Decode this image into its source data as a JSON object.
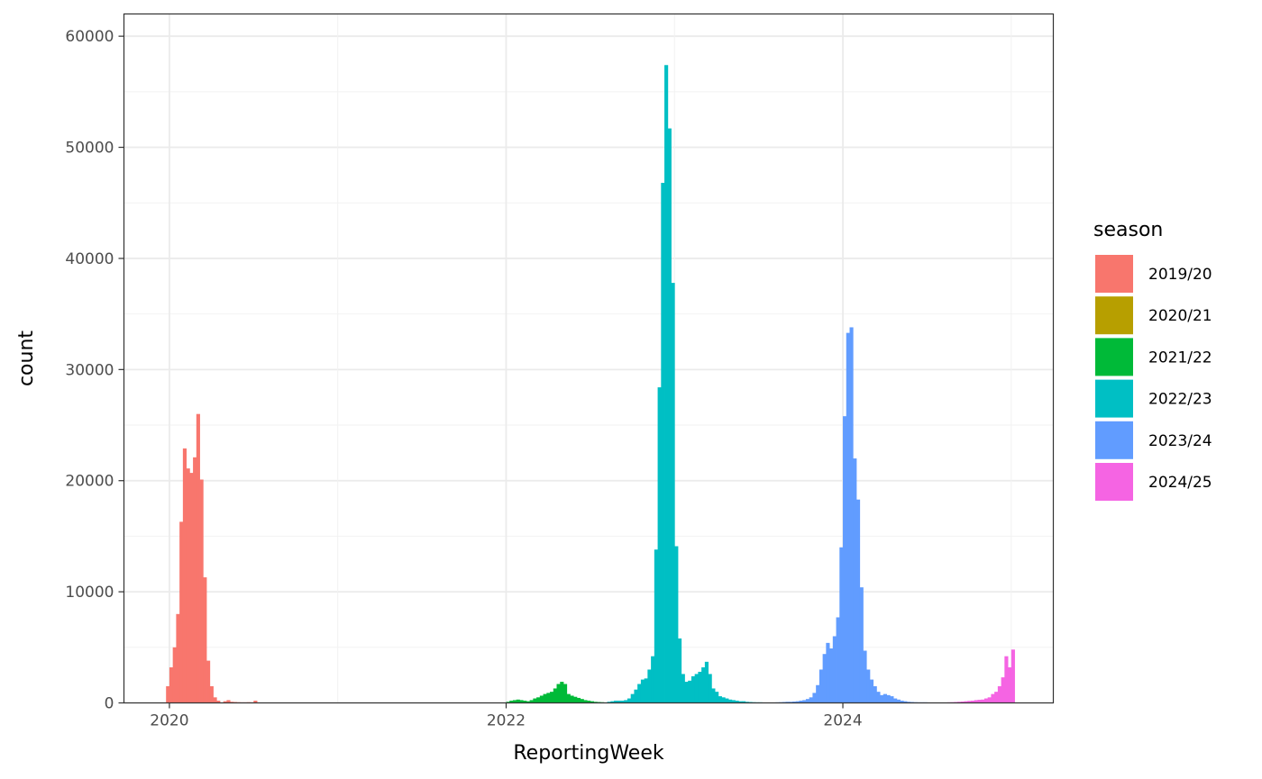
{
  "chart_data": {
    "type": "bar",
    "xlabel": "ReportingWeek",
    "ylabel": "count",
    "x_ticks": [
      "2020",
      "2022",
      "2024"
    ],
    "y_ticks": [
      "0",
      "10000",
      "20000",
      "30000",
      "40000",
      "50000",
      "60000"
    ],
    "xlim": [
      2019.73,
      2025.25
    ],
    "ylim": [
      0,
      62000
    ],
    "grid": true,
    "legend": {
      "title": "season",
      "placement": "right"
    },
    "series": [
      {
        "name": "2019/20",
        "color": "#F8766D",
        "x": [
          2019.99,
          2020.01,
          2020.03,
          2020.05,
          2020.07,
          2020.09,
          2020.11,
          2020.13,
          2020.15,
          2020.17,
          2020.19,
          2020.21,
          2020.23,
          2020.25,
          2020.27,
          2020.29,
          2020.33,
          2020.35,
          2020.37,
          2020.39,
          2020.41,
          2020.43,
          2020.45,
          2020.47,
          2020.49,
          2020.51,
          2020.53
        ],
        "values": [
          1500,
          3200,
          5000,
          8000,
          16300,
          22900,
          21100,
          20700,
          22100,
          26000,
          20100,
          11300,
          3800,
          1500,
          500,
          200,
          150,
          250,
          100,
          80,
          60,
          50,
          50,
          60,
          50,
          200,
          30
        ]
      },
      {
        "name": "2020/21",
        "color": "#B79F00",
        "x": [],
        "values": []
      },
      {
        "name": "2021/22",
        "color": "#00BA38",
        "x": [
          2022.01,
          2022.03,
          2022.05,
          2022.07,
          2022.09,
          2022.11,
          2022.13,
          2022.15,
          2022.17,
          2022.19,
          2022.21,
          2022.23,
          2022.25,
          2022.27,
          2022.29,
          2022.31,
          2022.33,
          2022.35,
          2022.37,
          2022.39,
          2022.41,
          2022.43,
          2022.45,
          2022.47,
          2022.49,
          2022.51,
          2022.53,
          2022.55,
          2022.57
        ],
        "values": [
          100,
          200,
          250,
          300,
          250,
          200,
          150,
          250,
          400,
          500,
          650,
          800,
          900,
          1000,
          1300,
          1700,
          1900,
          1700,
          800,
          650,
          550,
          450,
          350,
          250,
          200,
          150,
          100,
          80,
          60
        ]
      },
      {
        "name": "2022/23",
        "color": "#00BFC4",
        "x": [
          2022.61,
          2022.63,
          2022.65,
          2022.67,
          2022.69,
          2022.71,
          2022.73,
          2022.75,
          2022.77,
          2022.79,
          2022.81,
          2022.83,
          2022.85,
          2022.87,
          2022.89,
          2022.91,
          2022.93,
          2022.95,
          2022.97,
          2022.99,
          2023.01,
          2023.03,
          2023.05,
          2023.07,
          2023.09,
          2023.11,
          2023.13,
          2023.15,
          2023.17,
          2023.19,
          2023.21,
          2023.23,
          2023.25,
          2023.27,
          2023.29,
          2023.31,
          2023.33,
          2023.35,
          2023.37,
          2023.39,
          2023.41,
          2023.43,
          2023.45,
          2023.47,
          2023.49,
          2023.51,
          2023.53,
          2023.55,
          2023.57,
          2023.59
        ],
        "values": [
          100,
          150,
          200,
          200,
          200,
          250,
          400,
          800,
          1200,
          1700,
          2100,
          2200,
          3000,
          4200,
          13800,
          28400,
          46800,
          57400,
          51700,
          37800,
          14100,
          5800,
          2600,
          1900,
          2000,
          2400,
          2600,
          2800,
          3200,
          3700,
          2600,
          1300,
          1000,
          600,
          500,
          400,
          300,
          250,
          200,
          150,
          150,
          100,
          80,
          60,
          50,
          50,
          40,
          40,
          30,
          30
        ]
      },
      {
        "name": "2023/24",
        "color": "#619CFF",
        "x": [
          2023.61,
          2023.63,
          2023.65,
          2023.67,
          2023.69,
          2023.71,
          2023.73,
          2023.75,
          2023.77,
          2023.79,
          2023.81,
          2023.83,
          2023.85,
          2023.87,
          2023.89,
          2023.91,
          2023.93,
          2023.95,
          2023.97,
          2023.99,
          2024.01,
          2024.03,
          2024.05,
          2024.07,
          2024.09,
          2024.11,
          2024.13,
          2024.15,
          2024.17,
          2024.19,
          2024.21,
          2024.23,
          2024.25,
          2024.27,
          2024.29,
          2024.31,
          2024.33,
          2024.35,
          2024.37,
          2024.39,
          2024.41,
          2024.43,
          2024.45,
          2024.47,
          2024.49,
          2024.51,
          2024.53,
          2024.55,
          2024.57,
          2024.59
        ],
        "values": [
          50,
          60,
          80,
          100,
          100,
          120,
          150,
          200,
          250,
          350,
          500,
          900,
          1600,
          3000,
          4400,
          5400,
          4900,
          6000,
          7700,
          14000,
          25800,
          33300,
          33800,
          22000,
          18300,
          10400,
          4700,
          3000,
          2100,
          1500,
          1000,
          700,
          800,
          700,
          600,
          400,
          300,
          200,
          150,
          100,
          80,
          60,
          50,
          50,
          50,
          40,
          40,
          30,
          30,
          30
        ]
      },
      {
        "name": "2024/25",
        "color": "#F564E3",
        "x": [
          2024.61,
          2024.63,
          2024.65,
          2024.67,
          2024.69,
          2024.71,
          2024.73,
          2024.75,
          2024.77,
          2024.79,
          2024.81,
          2024.83,
          2024.85,
          2024.87,
          2024.89,
          2024.91,
          2024.93,
          2024.95,
          2024.97,
          2024.99,
          2025.01
        ],
        "values": [
          30,
          50,
          60,
          80,
          100,
          120,
          150,
          180,
          200,
          250,
          280,
          300,
          400,
          500,
          800,
          1000,
          1500,
          2300,
          4200,
          3200,
          4800
        ]
      }
    ]
  }
}
